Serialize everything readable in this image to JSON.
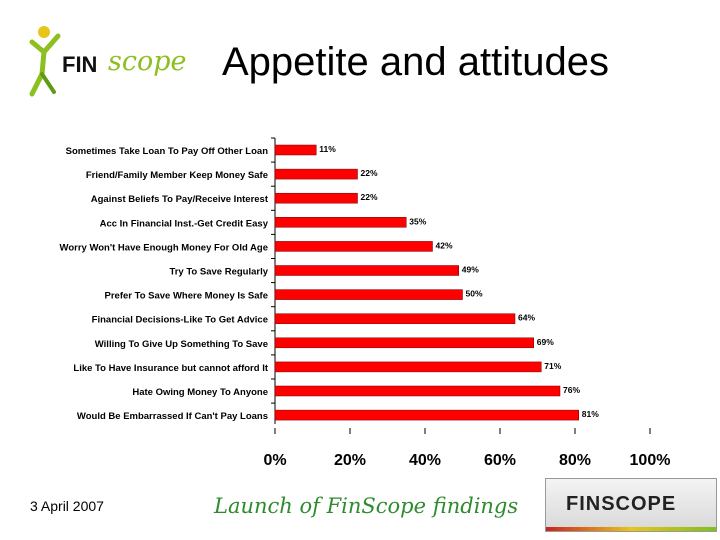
{
  "header": {
    "logo_fin": "FIN",
    "logo_scope": "scope",
    "title": "Appetite and attitudes"
  },
  "footer": {
    "date": "3 April 2007",
    "tagline": "Launch of FinScope findings",
    "brand": "FINSCOPE"
  },
  "colors": {
    "bar": "#ff0000",
    "bar_stroke": "#7a0000",
    "logo_green": "#8cbf1f",
    "tagline_green": "#2e8b2e"
  },
  "chart_data": {
    "type": "bar",
    "orientation": "horizontal",
    "categories": [
      "Sometimes Take Loan To Pay Off Other Loan",
      "Friend/Family Member Keep Money Safe",
      "Against Beliefs To Pay/Receive Interest",
      "Acc In Financial Inst.-Get Credit Easy",
      "Worry Won't Have Enough Money For Old Age",
      "Try To Save Regularly",
      "Prefer To Save Where Money Is Safe",
      "Financial Decisions-Like To Get Advice",
      "Willing To Give Up Something To Save",
      "Like To Have Insurance but cannot afford It",
      "Hate Owing Money To Anyone",
      "Would Be Embarrassed If Can't Pay Loans"
    ],
    "values": [
      11,
      22,
      22,
      35,
      42,
      49,
      50,
      64,
      69,
      71,
      76,
      81
    ],
    "value_labels": [
      "11%",
      "22%",
      "22%",
      "35%",
      "42%",
      "49%",
      "50%",
      "64%",
      "69%",
      "71%",
      "76%",
      "81%"
    ],
    "xlim": [
      0,
      100
    ],
    "x_ticks": [
      "0%",
      "20%",
      "40%",
      "60%",
      "80%",
      "100%"
    ],
    "grid": false,
    "legend": false
  }
}
